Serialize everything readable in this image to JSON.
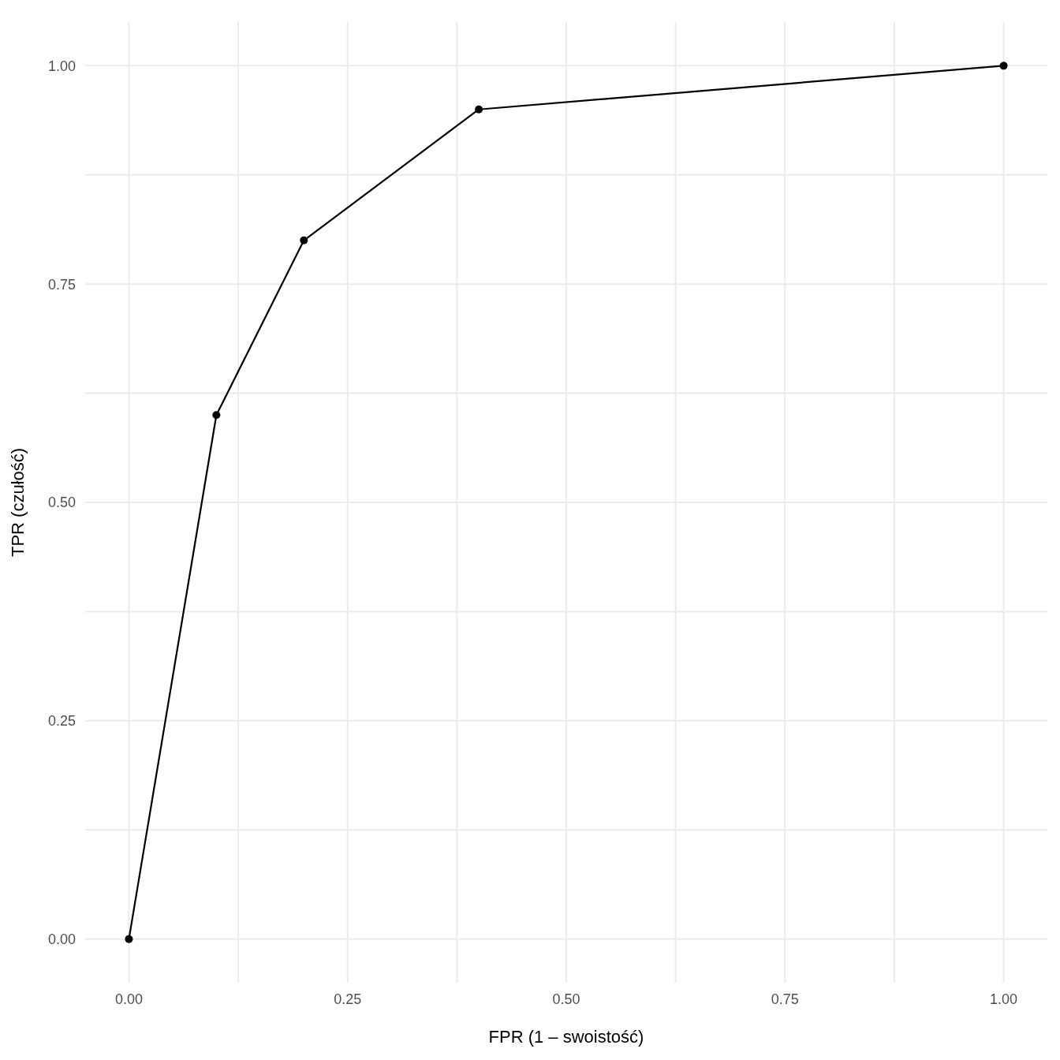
{
  "chart_data": {
    "type": "line",
    "xlabel": "FPR (1 – swoistość)",
    "ylabel": "TPR (czułość)",
    "x": [
      0,
      0.1,
      0.2,
      0.4,
      1
    ],
    "series": [
      {
        "color": "#000000",
        "values": [
          0,
          0.6,
          0.8,
          0.95,
          1
        ]
      }
    ],
    "xlim": [
      -0.05,
      1.05
    ],
    "ylim": [
      -0.05,
      1.05
    ],
    "xticks": [
      {
        "value": 0,
        "label": "0.00"
      },
      {
        "value": 0.125,
        "label": null
      },
      {
        "value": 0.25,
        "label": "0.25"
      },
      {
        "value": 0.375,
        "label": null
      },
      {
        "value": 0.5,
        "label": "0.50"
      },
      {
        "value": 0.625,
        "label": null
      },
      {
        "value": 0.75,
        "label": "0.75"
      },
      {
        "value": 0.875,
        "label": null
      },
      {
        "value": 1,
        "label": "1.00"
      }
    ],
    "yticks": [
      {
        "value": 0,
        "label": "0.00"
      },
      {
        "value": 0.125,
        "label": null
      },
      {
        "value": 0.25,
        "label": "0.25"
      },
      {
        "value": 0.375,
        "label": null
      },
      {
        "value": 0.5,
        "label": "0.50"
      },
      {
        "value": 0.625,
        "label": null
      },
      {
        "value": 0.75,
        "label": "0.75"
      },
      {
        "value": 0.875,
        "label": null
      },
      {
        "value": 1,
        "label": "1.00"
      }
    ],
    "grid": true,
    "marker": "circle",
    "line_style": "solid"
  }
}
